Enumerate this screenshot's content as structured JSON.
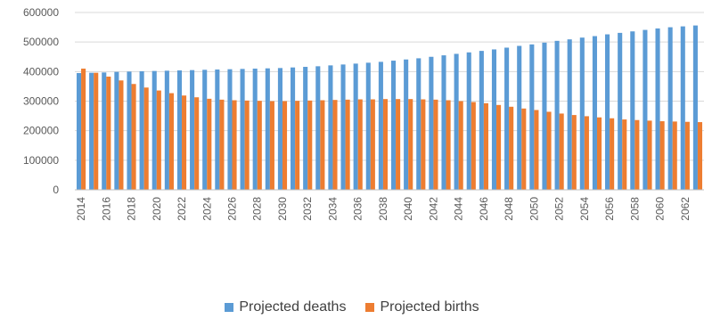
{
  "chart_data": {
    "type": "bar",
    "title": "",
    "xlabel": "",
    "ylabel": "",
    "ylim": [
      0,
      600000
    ],
    "yticks": [
      0,
      100000,
      200000,
      300000,
      400000,
      500000,
      600000
    ],
    "ytick_labels": [
      "0",
      "100000",
      "200000",
      "300000",
      "400000",
      "500000",
      "600000"
    ],
    "grid": "horizontal",
    "legend_position": "bottom",
    "categories": [
      "2014",
      "2015",
      "2016",
      "2017",
      "2018",
      "2019",
      "2020",
      "2021",
      "2022",
      "2023",
      "2024",
      "2025",
      "2026",
      "2027",
      "2028",
      "2029",
      "2030",
      "2031",
      "2032",
      "2033",
      "2034",
      "2035",
      "2036",
      "2037",
      "2038",
      "2039",
      "2040",
      "2041",
      "2042",
      "2043",
      "2044",
      "2045",
      "2046",
      "2047",
      "2048",
      "2049",
      "2050",
      "2051",
      "2052",
      "2053",
      "2054",
      "2055",
      "2056",
      "2057",
      "2058",
      "2059",
      "2060",
      "2061",
      "2062",
      "2063"
    ],
    "xtick_labels": [
      "2014",
      "2016",
      "2018",
      "2020",
      "2022",
      "2024",
      "2026",
      "2028",
      "2030",
      "2032",
      "2034",
      "2036",
      "2038",
      "2040",
      "2042",
      "2044",
      "2046",
      "2048",
      "2050",
      "2052",
      "2054",
      "2056",
      "2058",
      "2060",
      "2062"
    ],
    "series": [
      {
        "name": "Projected deaths",
        "color": "#5b9bd5",
        "values": [
          395000,
          396000,
          397000,
          399000,
          400000,
          401000,
          402000,
          403000,
          404000,
          405000,
          406000,
          407000,
          408000,
          409000,
          410000,
          411000,
          412000,
          414000,
          416000,
          418000,
          421000,
          424000,
          427000,
          430000,
          433000,
          437000,
          441000,
          445000,
          450000,
          455000,
          460000,
          465000,
          470000,
          475000,
          481000,
          487000,
          492000,
          498000,
          504000,
          509000,
          515000,
          520000,
          526000,
          531000,
          536000,
          541000,
          546000,
          550000,
          553000,
          556000
        ]
      },
      {
        "name": "Projected births",
        "color": "#ed7d31",
        "values": [
          410000,
          396000,
          383000,
          370000,
          358000,
          346000,
          336000,
          327000,
          319000,
          313000,
          308000,
          305000,
          303000,
          302000,
          301000,
          300000,
          300000,
          301000,
          302000,
          303000,
          304000,
          305000,
          306000,
          306000,
          307000,
          307000,
          307000,
          306000,
          305000,
          303000,
          300000,
          297000,
          293000,
          287000,
          281000,
          275000,
          270000,
          264000,
          258000,
          253000,
          249000,
          245000,
          242000,
          238000,
          236000,
          234000,
          232000,
          231000,
          230000,
          229000
        ]
      }
    ]
  }
}
